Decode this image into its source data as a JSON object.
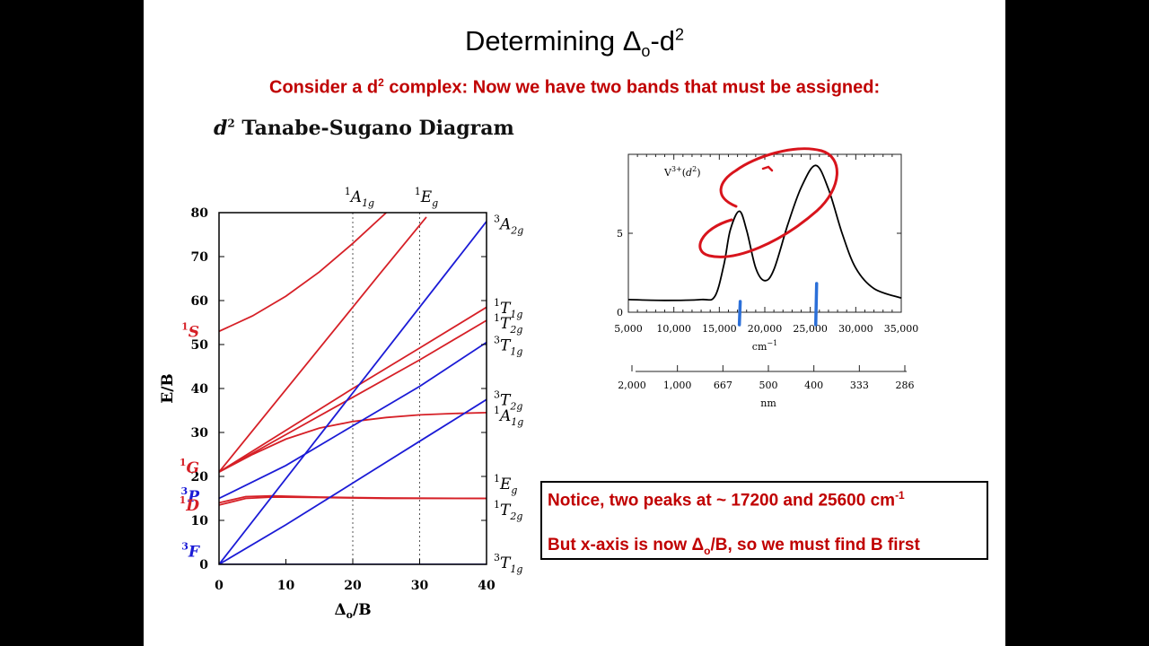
{
  "slide": {
    "title": "Determining Δo-d2",
    "title_main": "Determining Δ",
    "title_sub": "o",
    "title_mid": "-d",
    "title_sup": "2",
    "subtitle_a": "Consider a d",
    "subtitle_sup": "2",
    "subtitle_b": " complex:  Now we have two bands that must be assigned:",
    "diagram_title_italic": "d",
    "diagram_title_sup": "2",
    "diagram_title_rest": " Tanabe-Sugano Diagram",
    "note1_a": "Notice, two peaks at ~ 17200 and 25600 cm",
    "note1_sup": "-1",
    "note2_a": "But x-axis is now Δ",
    "note2_sub": "o",
    "note2_b": "/B, so we must find B first"
  },
  "chart_data": [
    {
      "type": "line",
      "title": "d2 Tanabe-Sugano Diagram",
      "xlabel": "Δo/B",
      "ylabel": "E/B",
      "xlim": [
        0,
        40
      ],
      "ylim": [
        0,
        80
      ],
      "xticks": [
        "0",
        "10",
        "20",
        "30",
        "40"
      ],
      "yticks": [
        "0",
        "10",
        "20",
        "30",
        "40",
        "50",
        "60",
        "70",
        "80"
      ],
      "grid": "dashed vertical at 20 and 30",
      "colors": {
        "singlet": "#d62027",
        "triplet": "#1b1bd6"
      },
      "left_labels": [
        {
          "term": "S",
          "mult": "1",
          "y": 53,
          "color": "#d62027"
        },
        {
          "term": "G",
          "mult": "1",
          "y": 22,
          "color": "#d62027"
        },
        {
          "term": "P",
          "mult": "3",
          "y": 15.5,
          "color": "#1b1bd6"
        },
        {
          "term": "D",
          "mult": "1",
          "y": 13.5,
          "color": "#d62027"
        },
        {
          "term": "F",
          "mult": "3",
          "y": 3,
          "color": "#1b1bd6"
        }
      ],
      "right_labels": [
        {
          "mult": "3",
          "term": "A",
          "sub": "2g",
          "y": 77
        },
        {
          "mult": "1",
          "term": "T",
          "sub": "1g",
          "y": 58
        },
        {
          "mult": "1",
          "term": "T",
          "sub": "2g",
          "y": 54.5
        },
        {
          "mult": "3",
          "term": "T",
          "sub": "1g",
          "y": 49.5
        },
        {
          "mult": "3",
          "term": "T",
          "sub": "2g",
          "y": 37
        },
        {
          "mult": "1",
          "term": "A",
          "sub": "1g",
          "y": 33.5
        },
        {
          "mult": "1",
          "term": "E",
          "sub": "g",
          "y": 18
        },
        {
          "mult": "1",
          "term": "T",
          "sub": "2g",
          "y": 12
        },
        {
          "mult": "3",
          "term": "T",
          "sub": "1g",
          "y": 0
        }
      ],
      "top_labels": [
        {
          "mult": "1",
          "term": "A",
          "sub": "1g",
          "x": 21
        },
        {
          "mult": "1",
          "term": "E",
          "sub": "g",
          "x": 31
        }
      ],
      "series": [
        {
          "label": "1A1g (upper)",
          "color": "#d62027",
          "points": [
            [
              0,
              53
            ],
            [
              5,
              56.5
            ],
            [
              10,
              61
            ],
            [
              15,
              66.5
            ],
            [
              20,
              73
            ],
            [
              25,
              80
            ]
          ]
        },
        {
          "label": "1Eg (upper)",
          "color": "#d62027",
          "points": [
            [
              0,
              21
            ],
            [
              8,
              36
            ],
            [
              16,
              51
            ],
            [
              24,
              66
            ],
            [
              31,
              79
            ]
          ]
        },
        {
          "label": "1T1g",
          "color": "#d62027",
          "points": [
            [
              0,
              21
            ],
            [
              10,
              30.5
            ],
            [
              20,
              40
            ],
            [
              30,
              49.2
            ],
            [
              40,
              58.5
            ]
          ]
        },
        {
          "label": "1T2g",
          "color": "#d62027",
          "points": [
            [
              0,
              21
            ],
            [
              10,
              29.5
            ],
            [
              20,
              38
            ],
            [
              30,
              46.5
            ],
            [
              40,
              55.5
            ]
          ]
        },
        {
          "label": "1A1g",
          "color": "#d62027",
          "points": [
            [
              0,
              21
            ],
            [
              5,
              25
            ],
            [
              10,
              28.5
            ],
            [
              15,
              31
            ],
            [
              20,
              32.5
            ],
            [
              25,
              33.4
            ],
            [
              30,
              34
            ],
            [
              35,
              34.3
            ],
            [
              40,
              34.5
            ]
          ]
        },
        {
          "label": "1Eg",
          "color": "#d62027",
          "points": [
            [
              0,
              14
            ],
            [
              4,
              15.4
            ],
            [
              8,
              15.6
            ],
            [
              15,
              15.3
            ],
            [
              25,
              15.1
            ],
            [
              40,
              15
            ]
          ]
        },
        {
          "label": "1T2g",
          "color": "#d62027",
          "points": [
            [
              0,
              13.5
            ],
            [
              4,
              15
            ],
            [
              8,
              15.3
            ],
            [
              15,
              15.2
            ],
            [
              25,
              15
            ],
            [
              40,
              15
            ]
          ]
        },
        {
          "label": "3A2g",
          "color": "#1b1bd6",
          "points": [
            [
              0,
              0
            ],
            [
              40,
              78
            ]
          ]
        },
        {
          "label": "3T1g (P)",
          "color": "#1b1bd6",
          "points": [
            [
              0,
              15
            ],
            [
              10,
              22.5
            ],
            [
              20,
              31.5
            ],
            [
              30,
              40.5
            ],
            [
              40,
              50.5
            ]
          ]
        },
        {
          "label": "3T2g",
          "color": "#1b1bd6",
          "points": [
            [
              0,
              0
            ],
            [
              10,
              9
            ],
            [
              20,
              18.5
            ],
            [
              30,
              28
            ],
            [
              40,
              37.5
            ]
          ]
        },
        {
          "label": "3T1g (F)",
          "color": "#1b1bd6",
          "points": [
            [
              0,
              0
            ],
            [
              40,
              0
            ]
          ]
        }
      ]
    },
    {
      "type": "line",
      "title": "V3+(d2)",
      "series_label_base": "V",
      "series_label_sup": "3+",
      "series_label_paren": "(d",
      "series_label_paren_sup": "2",
      "series_label_close": ")",
      "xlabel": "cm",
      "xlabel_sup": "−1",
      "x2label": "nm",
      "xlim": [
        5000,
        35000
      ],
      "ylim": [
        0,
        10
      ],
      "xticks": [
        "5,000",
        "10,000",
        "15,000",
        "20,000",
        "25,000",
        "30,000",
        "35,000"
      ],
      "yticks": [
        "0",
        "5"
      ],
      "x2ticks": [
        {
          "value": 5000,
          "label": "2,000"
        },
        {
          "value": 10000,
          "label": "1,000"
        },
        {
          "value": 15000,
          "label": "667"
        },
        {
          "value": 20000,
          "label": "500"
        },
        {
          "value": 25000,
          "label": "400"
        },
        {
          "value": 30000,
          "label": "333"
        },
        {
          "value": 35000,
          "label": "286"
        }
      ],
      "absorbance": [
        [
          5000,
          0.8
        ],
        [
          9000,
          0.75
        ],
        [
          13000,
          0.8
        ],
        [
          14500,
          1.0
        ],
        [
          15500,
          3.0
        ],
        [
          16200,
          5.2
        ],
        [
          17200,
          6.4
        ],
        [
          18000,
          5.2
        ],
        [
          19000,
          2.8
        ],
        [
          20000,
          2.0
        ],
        [
          21000,
          2.7
        ],
        [
          22500,
          5.5
        ],
        [
          24000,
          7.9
        ],
        [
          25600,
          9.3
        ],
        [
          27000,
          7.8
        ],
        [
          28500,
          5.0
        ],
        [
          30000,
          2.8
        ],
        [
          32000,
          1.5
        ],
        [
          35000,
          0.9
        ]
      ],
      "peak_markers_cm": [
        17200,
        25600
      ],
      "marker_color": "#2b6fd8",
      "annotation_color": "#d8141c"
    }
  ]
}
